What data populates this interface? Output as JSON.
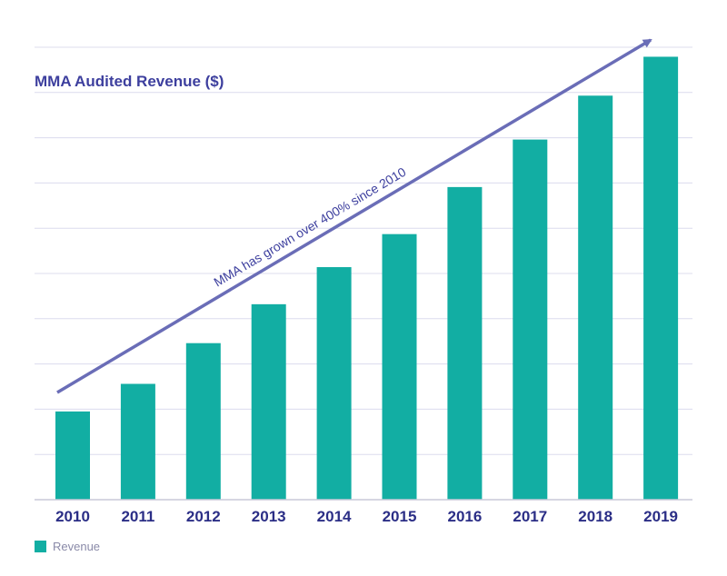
{
  "colors": {
    "bar": "#12aea3",
    "title": "#3d3f9e",
    "arrow": "#6a6db7",
    "grid": "#dcdcee",
    "axis": "#c8c8d8"
  },
  "chart_data": {
    "type": "bar",
    "title": "MMA Audited Revenue ($)",
    "xlabel": "",
    "ylabel": "",
    "categories": [
      "2010",
      "2011",
      "2012",
      "2013",
      "2014",
      "2015",
      "2016",
      "2017",
      "2018",
      "2019"
    ],
    "series": [
      {
        "name": "Revenue",
        "values": [
          1.95,
          2.56,
          3.46,
          4.32,
          5.14,
          5.87,
          6.91,
          7.96,
          8.93,
          9.79
        ]
      }
    ],
    "ylim": [
      0,
      10
    ],
    "grid": true,
    "legend": "bottom-left",
    "annotation": "MMA has grown over 400% since 2010"
  }
}
